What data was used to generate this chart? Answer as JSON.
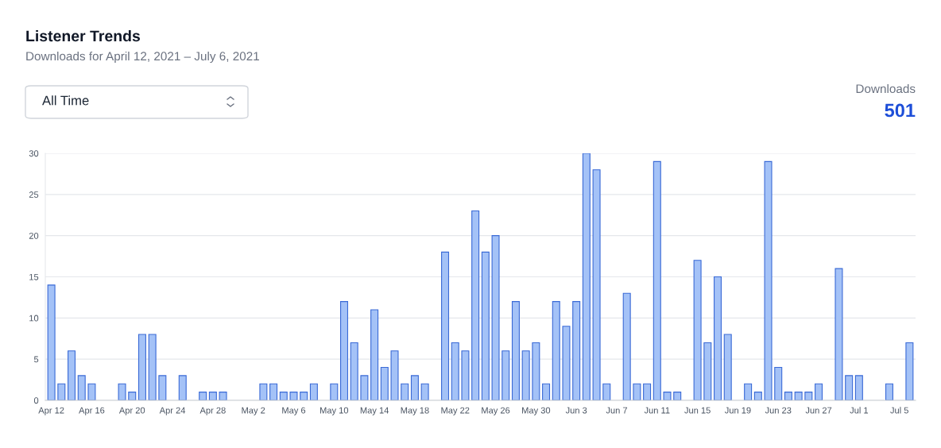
{
  "chart_data": {
    "type": "bar",
    "title": "Listener Trends",
    "subtitle": "Downloads for April 12, 2021 – July 6, 2021",
    "annotations": [
      "All Time",
      "Downloads",
      "501"
    ],
    "categories": [
      "Apr 12",
      null,
      null,
      null,
      "Apr 16",
      null,
      null,
      null,
      "Apr 20",
      null,
      null,
      null,
      "Apr 24",
      null,
      null,
      null,
      "Apr 28",
      null,
      null,
      null,
      "May 2",
      null,
      null,
      null,
      "May 6",
      null,
      null,
      null,
      "May 10",
      null,
      null,
      null,
      "May 14",
      null,
      null,
      null,
      "May 18",
      null,
      null,
      null,
      "May 22",
      null,
      null,
      null,
      "May 26",
      null,
      null,
      null,
      "May 30",
      null,
      null,
      null,
      "Jun 3",
      null,
      null,
      null,
      "Jun 7",
      null,
      null,
      null,
      "Jun 11",
      null,
      null,
      null,
      "Jun 15",
      null,
      null,
      null,
      "Jun 19",
      null,
      null,
      null,
      "Jun 23",
      null,
      null,
      null,
      "Jun 27",
      null,
      null,
      null,
      "Jul 1",
      null,
      null,
      null,
      "Jul 5",
      null
    ],
    "series": [
      {
        "color": "#a4c2f7",
        "values": [
          14,
          2,
          6,
          3,
          2,
          0,
          0,
          2,
          1,
          8,
          8,
          3,
          0,
          3,
          0,
          1,
          1,
          1,
          0,
          0,
          0,
          2,
          2,
          1,
          1,
          1,
          2,
          0,
          2,
          12,
          7,
          3,
          11,
          4,
          6,
          2,
          3,
          2,
          0,
          18,
          7,
          6,
          23,
          18,
          20,
          6,
          12,
          6,
          7,
          2,
          12,
          9,
          12,
          30,
          28,
          2,
          0,
          13,
          2,
          2,
          29,
          1,
          1,
          0,
          17,
          7,
          15,
          8,
          0,
          2,
          1,
          29,
          4,
          1,
          1,
          1,
          2,
          0,
          16,
          3,
          3,
          0,
          0,
          2,
          0,
          7
        ]
      }
    ],
    "ylim": [
      0,
      30
    ],
    "yticks": [
      0,
      5,
      10,
      15,
      20,
      25,
      30
    ],
    "grid": "y"
  }
}
